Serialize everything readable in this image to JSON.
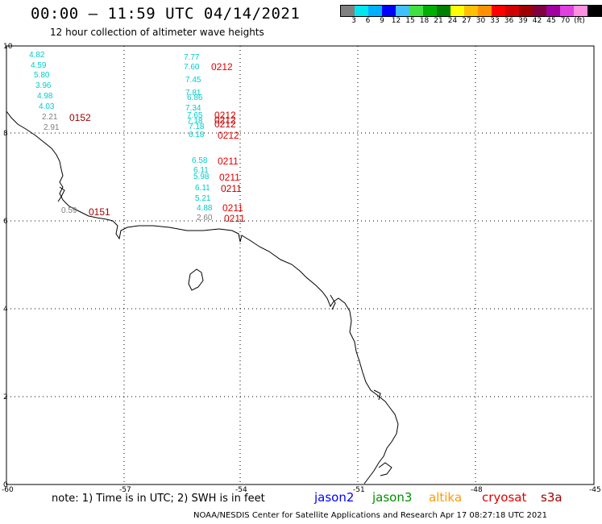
{
  "title": "00:00 – 11:59 UTC 04/14/2021",
  "subtitle": "12 hour collection of altimeter wave heights",
  "colorbar": {
    "colors": [
      "#808080",
      "#00e5ee",
      "#00b0ff",
      "#0000ff",
      "#40c0ff",
      "#40e040",
      "#00b000",
      "#008000",
      "#ffff00",
      "#ffc000",
      "#ff9000",
      "#ff0000",
      "#d00000",
      "#a00000",
      "#800040",
      "#a000a0",
      "#e040e0",
      "#ff90e0",
      "#000000"
    ],
    "labels": [
      "3",
      "6",
      "9",
      "12",
      "15",
      "18",
      "21",
      "24",
      "27",
      "30",
      "33",
      "36",
      "39",
      "42",
      "45",
      "70",
      "(ft)"
    ]
  },
  "lat_labels": [
    "10",
    "8",
    "6",
    "4",
    "2",
    "0"
  ],
  "lon_labels": [
    "-60",
    "-57",
    "-54",
    "-51",
    "-48",
    "-45"
  ],
  "values": [
    {
      "t": "4.82",
      "c": "#00cccc"
    },
    {
      "t": "4.59",
      "c": "#00cccc"
    },
    {
      "t": "5.80",
      "c": "#00cccc"
    },
    {
      "t": "3.96",
      "c": "#00cccc"
    },
    {
      "t": "4.98",
      "c": "#00cccc"
    },
    {
      "t": "4.03",
      "c": "#00cccc"
    },
    {
      "t": "2.21",
      "c": "#808080"
    },
    {
      "t": "2.91",
      "c": "#808080"
    },
    {
      "t": "0.59",
      "c": "#808080"
    },
    {
      "t": "7.77",
      "c": "#00cccc"
    },
    {
      "t": "7.60",
      "c": "#00cccc"
    },
    {
      "t": "7.45",
      "c": "#00cccc"
    },
    {
      "t": "7.81",
      "c": "#00cccc"
    },
    {
      "t": "6.86",
      "c": "#00cccc"
    },
    {
      "t": "7.34",
      "c": "#00cccc"
    },
    {
      "t": "7.65",
      "c": "#00cccc"
    },
    {
      "t": "7.18",
      "c": "#00cccc"
    },
    {
      "t": "7.18",
      "c": "#00cccc"
    },
    {
      "t": "6.18",
      "c": "#00cccc"
    },
    {
      "t": "6.58",
      "c": "#00cccc"
    },
    {
      "t": "6.11",
      "c": "#00cccc"
    },
    {
      "t": "5.98",
      "c": "#00cccc"
    },
    {
      "t": "6.11",
      "c": "#00cccc"
    },
    {
      "t": "5.21",
      "c": "#00cccc"
    },
    {
      "t": "4.88",
      "c": "#00cccc"
    },
    {
      "t": "2.60",
      "c": "#808080"
    }
  ],
  "passes": [
    {
      "t": "0152",
      "c": "#a00000"
    },
    {
      "t": "0151",
      "c": "#a00000"
    },
    {
      "t": "0212",
      "c": "#e00000"
    },
    {
      "t": "0212",
      "c": "#e00000"
    },
    {
      "t": "0212",
      "c": "#c00000"
    },
    {
      "t": "0212",
      "c": "#c00000"
    },
    {
      "t": "0212",
      "c": "#e00000"
    },
    {
      "t": "0211",
      "c": "#e00000"
    },
    {
      "t": "0211",
      "c": "#e00000"
    },
    {
      "t": "0211",
      "c": "#c00000"
    },
    {
      "t": "0211",
      "c": "#e00000"
    },
    {
      "t": "0211",
      "c": "#e00000"
    }
  ],
  "note": "note: 1) Time is in UTC; 2) SWH is in feet",
  "legend": [
    {
      "t": "jason2",
      "c": "#0000ff"
    },
    {
      "t": "jason3",
      "c": "#009000"
    },
    {
      "t": "altika",
      "c": "#ff9900"
    },
    {
      "t": "cryosat",
      "c": "#e00000"
    },
    {
      "t": "s3a",
      "c": "#a00000"
    }
  ],
  "credit": "NOAA/NESDIS Center for Satellite Applications and Research   Apr 17 08:27:18 UTC 2021"
}
